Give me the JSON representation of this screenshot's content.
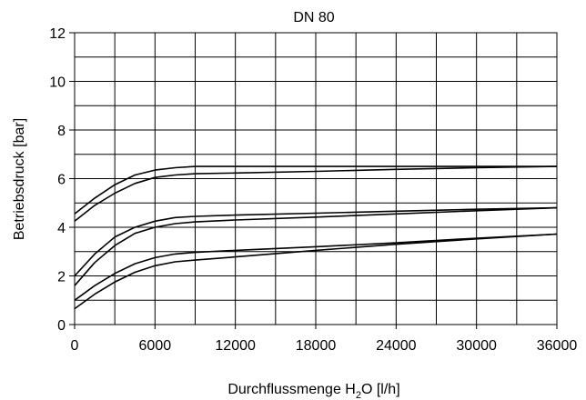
{
  "chart_data": {
    "type": "line",
    "title": "DN 80",
    "xlabel": {
      "pre": "Durchflussmenge H",
      "sub": "2",
      "post": "O [l/h]"
    },
    "ylabel": "Betriebsdruck [bar]",
    "xlim": [
      0,
      36000
    ],
    "ylim": [
      0,
      12
    ],
    "x_ticks": [
      0,
      6000,
      12000,
      18000,
      24000,
      30000,
      36000
    ],
    "x_tick_labels": [
      "0",
      "6000",
      "12000",
      "18000",
      "24000",
      "30000",
      "36000"
    ],
    "y_ticks": [
      0,
      2,
      4,
      6,
      8,
      10,
      12
    ],
    "y_tick_labels": [
      "0",
      "2",
      "4",
      "6",
      "8",
      "10",
      "12"
    ],
    "grid": true,
    "grid_x_step": 3000,
    "grid_y_step": 1,
    "series": [
      {
        "x": [
          0,
          1500,
          3000,
          4500,
          6000,
          7500,
          9000,
          12000,
          18000,
          24000,
          30000,
          36000
        ],
        "y": [
          4.55,
          5.2,
          5.75,
          6.15,
          6.35,
          6.45,
          6.5,
          6.5,
          6.5,
          6.5,
          6.5,
          6.5
        ]
      },
      {
        "x": [
          0,
          1500,
          3000,
          4500,
          6000,
          7500,
          9000,
          12000,
          18000,
          24000,
          30000,
          36000
        ],
        "y": [
          4.25,
          4.9,
          5.4,
          5.8,
          6.05,
          6.15,
          6.2,
          6.23,
          6.3,
          6.38,
          6.45,
          6.5
        ]
      },
      {
        "x": [
          0,
          1500,
          3000,
          4500,
          6000,
          7500,
          9000,
          12000,
          18000,
          24000,
          30000,
          36000
        ],
        "y": [
          2.0,
          2.9,
          3.6,
          4.0,
          4.25,
          4.4,
          4.45,
          4.5,
          4.58,
          4.66,
          4.74,
          4.8
        ]
      },
      {
        "x": [
          0,
          1500,
          3000,
          4500,
          6000,
          7500,
          9000,
          12000,
          18000,
          24000,
          30000,
          36000
        ],
        "y": [
          1.6,
          2.55,
          3.25,
          3.75,
          4.0,
          4.15,
          4.22,
          4.3,
          4.42,
          4.55,
          4.68,
          4.8
        ]
      },
      {
        "x": [
          0,
          1500,
          3000,
          4500,
          6000,
          7500,
          9000,
          12000,
          18000,
          24000,
          30000,
          36000
        ],
        "y": [
          1.0,
          1.6,
          2.1,
          2.5,
          2.75,
          2.9,
          2.97,
          3.05,
          3.2,
          3.36,
          3.55,
          3.72
        ]
      },
      {
        "x": [
          0,
          1500,
          3000,
          4500,
          6000,
          7500,
          9000,
          12000,
          18000,
          24000,
          30000,
          36000
        ],
        "y": [
          0.65,
          1.25,
          1.75,
          2.15,
          2.42,
          2.58,
          2.65,
          2.78,
          3.05,
          3.3,
          3.52,
          3.72
        ]
      }
    ]
  }
}
